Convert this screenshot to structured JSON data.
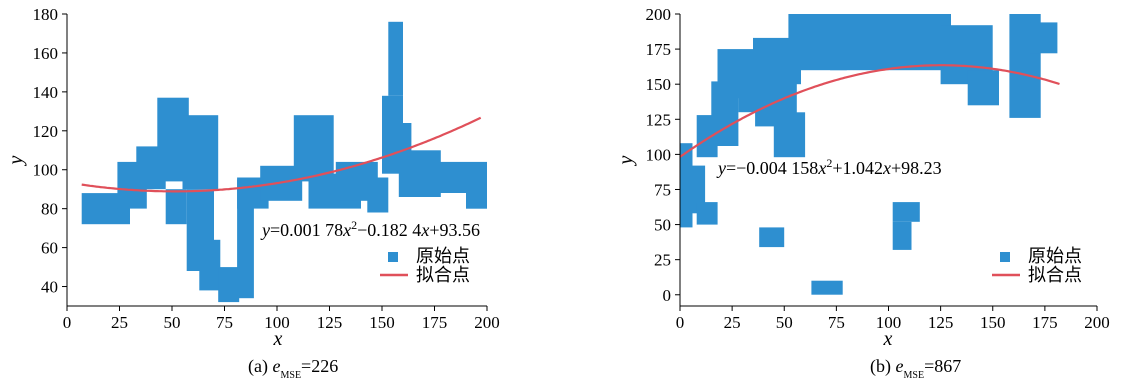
{
  "chart_data": [
    {
      "type": "scatter",
      "xlabel": "x",
      "ylabel": "y",
      "xlim": [
        0,
        200
      ],
      "ylim": [
        30,
        180
      ],
      "xticks": [
        0,
        25,
        50,
        75,
        100,
        125,
        150,
        175,
        200
      ],
      "yticks": [
        40,
        60,
        80,
        100,
        120,
        140,
        160,
        180
      ],
      "caption_prefix": "(a) ",
      "caption_e": "e",
      "caption_sub": "MSE",
      "caption_value": "=226",
      "equation": {
        "y": "y",
        "part1": "=0.001 78",
        "x1": "x",
        "sup": "2",
        "part2": "−0.182 4",
        "x2": "x",
        "part3": "+93.56"
      },
      "legend": [
        "原始点",
        "拟合点"
      ],
      "legend_position": "lower-right",
      "point_color": "#2e8fd0",
      "fit_color": "#e0505a",
      "fit": {
        "a": 0.00178,
        "b": -0.1824,
        "c": 93.56,
        "x_range": [
          7,
          197
        ]
      },
      "point_regions": [
        {
          "x": [
            7,
            30
          ],
          "y": [
            72,
            88
          ]
        },
        {
          "x": [
            24,
            38
          ],
          "y": [
            80,
            104
          ]
        },
        {
          "x": [
            33,
            47
          ],
          "y": [
            90,
            112
          ]
        },
        {
          "x": [
            43,
            58
          ],
          "y": [
            94,
            137
          ]
        },
        {
          "x": [
            55,
            72
          ],
          "y": [
            90,
            128
          ]
        },
        {
          "x": [
            47,
            57
          ],
          "y": [
            72,
            90
          ]
        },
        {
          "x": [
            57,
            70
          ],
          "y": [
            48,
            90
          ]
        },
        {
          "x": [
            63,
            73
          ],
          "y": [
            38,
            64
          ]
        },
        {
          "x": [
            72,
            82
          ],
          "y": [
            32,
            50
          ]
        },
        {
          "x": [
            81,
            89
          ],
          "y": [
            34,
            95
          ]
        },
        {
          "x": [
            81,
            96
          ],
          "y": [
            80,
            96
          ]
        },
        {
          "x": [
            92,
            112
          ],
          "y": [
            84,
            102
          ]
        },
        {
          "x": [
            108,
            127
          ],
          "y": [
            94,
            128
          ]
        },
        {
          "x": [
            115,
            140
          ],
          "y": [
            80,
            98
          ]
        },
        {
          "x": [
            128,
            148
          ],
          "y": [
            84,
            104
          ]
        },
        {
          "x": [
            143,
            153
          ],
          "y": [
            78,
            96
          ]
        },
        {
          "x": [
            150,
            160
          ],
          "y": [
            98,
            138
          ]
        },
        {
          "x": [
            153,
            160
          ],
          "y": [
            138,
            176
          ]
        },
        {
          "x": [
            156,
            164
          ],
          "y": [
            104,
            124
          ]
        },
        {
          "x": [
            158,
            178
          ],
          "y": [
            86,
            110
          ]
        },
        {
          "x": [
            170,
            200
          ],
          "y": [
            88,
            104
          ]
        },
        {
          "x": [
            190,
            200
          ],
          "y": [
            80,
            95
          ]
        }
      ]
    },
    {
      "type": "scatter",
      "xlabel": "x",
      "ylabel": "y",
      "xlim": [
        0,
        200
      ],
      "ylim": [
        -8,
        200
      ],
      "xticks": [
        0,
        25,
        50,
        75,
        100,
        125,
        150,
        175,
        200
      ],
      "yticks": [
        0,
        25,
        50,
        75,
        100,
        125,
        150,
        175,
        200
      ],
      "caption_prefix": "(b) ",
      "caption_e": "e",
      "caption_sub": "MSE",
      "caption_value": "=867",
      "equation": {
        "y": "y",
        "part1": "=−0.004 158",
        "x1": "x",
        "sup": "2",
        "part2": "+1.042",
        "x2": "x",
        "part3": "+98.23"
      },
      "legend": [
        "原始点",
        "拟合点"
      ],
      "legend_position": "lower-right",
      "point_color": "#2e8fd0",
      "fit_color": "#e0505a",
      "fit": {
        "a": -0.004158,
        "b": 1.042,
        "c": 98.23,
        "x_range": [
          0,
          182
        ]
      },
      "point_regions": [
        {
          "x": [
            0,
            6
          ],
          "y": [
            48,
            108
          ]
        },
        {
          "x": [
            3,
            12
          ],
          "y": [
            58,
            92
          ]
        },
        {
          "x": [
            8,
            18
          ],
          "y": [
            50,
            66
          ]
        },
        {
          "x": [
            8,
            18
          ],
          "y": [
            98,
            128
          ]
        },
        {
          "x": [
            15,
            28
          ],
          "y": [
            106,
            152
          ]
        },
        {
          "x": [
            18,
            38
          ],
          "y": [
            140,
            175
          ]
        },
        {
          "x": [
            28,
            48
          ],
          "y": [
            130,
            168
          ]
        },
        {
          "x": [
            36,
            56
          ],
          "y": [
            120,
            160
          ]
        },
        {
          "x": [
            45,
            60
          ],
          "y": [
            98,
            130
          ]
        },
        {
          "x": [
            35,
            58
          ],
          "y": [
            150,
            183
          ]
        },
        {
          "x": [
            52,
            80
          ],
          "y": [
            160,
            200
          ]
        },
        {
          "x": [
            72,
            130
          ],
          "y": [
            160,
            200
          ]
        },
        {
          "x": [
            125,
            150
          ],
          "y": [
            150,
            192
          ]
        },
        {
          "x": [
            138,
            153
          ],
          "y": [
            135,
            160
          ]
        },
        {
          "x": [
            158,
            173
          ],
          "y": [
            126,
            200
          ]
        },
        {
          "x": [
            168,
            181
          ],
          "y": [
            172,
            194
          ]
        },
        {
          "x": [
            38,
            50
          ],
          "y": [
            34,
            48
          ]
        },
        {
          "x": [
            102,
            115
          ],
          "y": [
            52,
            66
          ]
        },
        {
          "x": [
            102,
            111
          ],
          "y": [
            32,
            52
          ]
        },
        {
          "x": [
            63,
            78
          ],
          "y": [
            0,
            10
          ]
        }
      ]
    }
  ]
}
